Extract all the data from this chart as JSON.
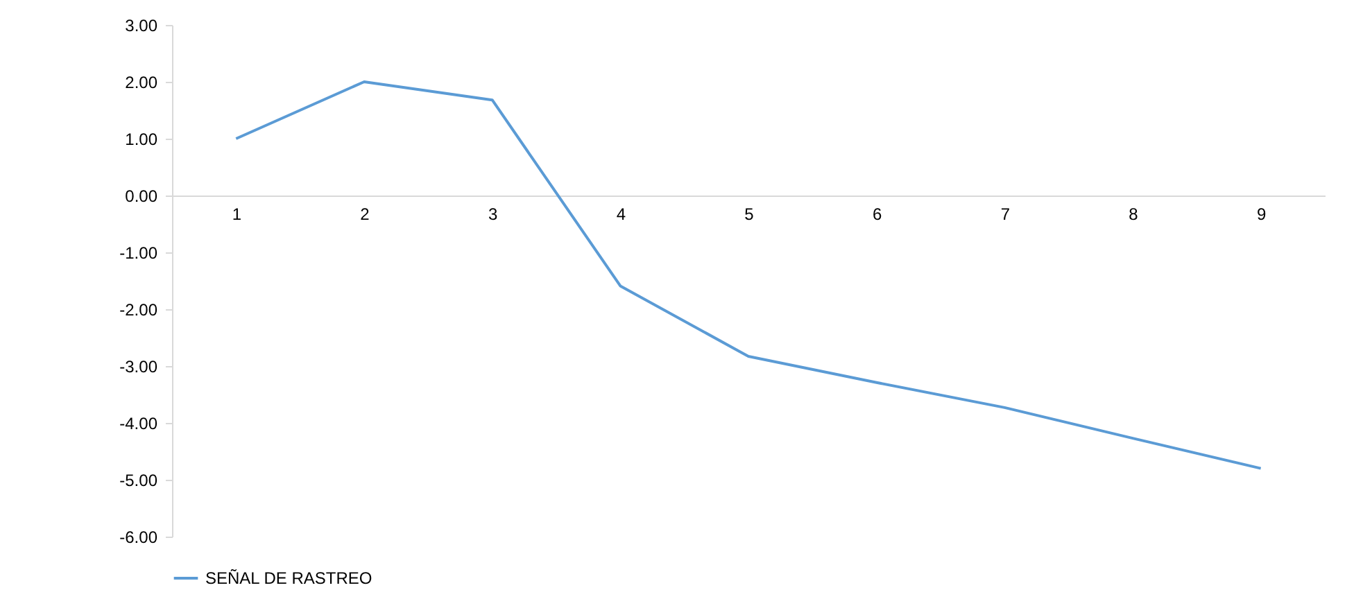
{
  "chart_data": {
    "type": "line",
    "categories": [
      "1",
      "2",
      "3",
      "4",
      "5",
      "6",
      "7",
      "8",
      "9"
    ],
    "series": [
      {
        "name": "SEÑAL DE RASTREO",
        "color": "#5b9bd5",
        "values": [
          1.0,
          2.0,
          1.68,
          -1.59,
          -2.83,
          -3.29,
          -3.73,
          -4.27,
          -4.8
        ]
      }
    ],
    "ylim": [
      -6,
      3
    ],
    "yticks": [
      {
        "value": 3,
        "label": "3.00"
      },
      {
        "value": 2,
        "label": "2.00"
      },
      {
        "value": 1,
        "label": "1.00"
      },
      {
        "value": 0,
        "label": "0.00"
      },
      {
        "value": -1,
        "label": "-1.00"
      },
      {
        "value": -2,
        "label": "-2.00"
      },
      {
        "value": -3,
        "label": "-3.00"
      },
      {
        "value": -4,
        "label": "-4.00"
      },
      {
        "value": -5,
        "label": "-5.00"
      },
      {
        "value": -6,
        "label": "-6.00"
      }
    ],
    "grid": false,
    "legend": "bottom",
    "marker": "none",
    "line_style": "solid"
  }
}
